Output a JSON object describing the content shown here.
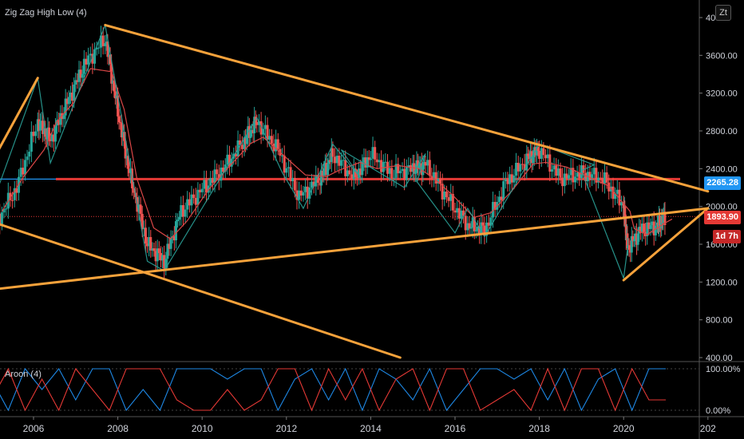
{
  "indicators": {
    "main_title": "Zig Zag High Low (4)",
    "osc_title": "Aroon (4)"
  },
  "scale_button": "Zt",
  "price_tags": {
    "blue": "2265.28",
    "last": "1893.90",
    "countdown": "1d 7h"
  },
  "colors": {
    "background": "#000000",
    "up": "#26a69a",
    "down": "#ef5350",
    "trendline": "#f7a23b",
    "resistance": "#e53935",
    "ma": "#d94646",
    "blue_tag": "#2196f3",
    "aroon_up": "#1e88e5",
    "aroon_down": "#e53935"
  },
  "chart_data": [
    {
      "type": "candlestick",
      "title": "Zig Zag High Low (4)",
      "x_tick_labels": [
        "2006",
        "2008",
        "2010",
        "2012",
        "2014",
        "2016",
        "2018",
        "2020",
        "202"
      ],
      "y_tick_labels": [
        "400.00",
        "800.00",
        "1200.00",
        "1600.00",
        "2000.00",
        "2400.00",
        "2800.00",
        "3200.00",
        "3600.00",
        "40"
      ],
      "ylim": [
        400,
        4000
      ],
      "xlim": [
        2005.0,
        2022.0
      ],
      "zigzag": {
        "x": [
          2005.0,
          2006.1,
          2006.4,
          2007.7,
          2008.7,
          2009.1,
          2011.3,
          2011.9,
          2012.4,
          2013.1,
          2013.8,
          2013.3,
          2014.8,
          2015.3,
          2015.1,
          2016.0,
          2016.3,
          2016.7,
          2018.0,
          2019.3,
          2019.0,
          2020.0,
          2020.1
        ],
        "y": [
          2000,
          3360,
          2460,
          3920,
          1420,
          1320,
          2940,
          2360,
          1980,
          2660,
          2280,
          2600,
          2200,
          2560,
          2260,
          1720,
          1980,
          1680,
          2660,
          2440,
          2380,
          1240,
          1580
        ]
      },
      "trendlines": [
        {
          "name": "upper-descending",
          "x": [
            2007.7,
            2022.0
          ],
          "y": [
            3920,
            2160
          ]
        },
        {
          "name": "lower-rising",
          "x": [
            2005.0,
            2022.0
          ],
          "y": [
            1120,
            1980
          ]
        },
        {
          "name": "lower-descending",
          "x": [
            2005.0,
            2014.7
          ],
          "y": [
            1840,
            400
          ]
        },
        {
          "name": "short-rising",
          "x": [
            2020.0,
            2022.0
          ],
          "y": [
            1220,
            1980
          ]
        },
        {
          "name": "early-rising",
          "x": [
            2005.0,
            2006.1
          ],
          "y": [
            2460,
            3360
          ]
        }
      ],
      "resistance_level": 2290,
      "last_price": 1893.9,
      "series_close": {
        "x": [
          2005.1,
          2005.6,
          2006.1,
          2006.4,
          2006.8,
          2007.2,
          2007.7,
          2008.0,
          2008.3,
          2008.7,
          2009.1,
          2009.5,
          2010.0,
          2010.5,
          2011.0,
          2011.3,
          2011.8,
          2012.3,
          2012.8,
          2013.1,
          2013.6,
          2014.0,
          2014.5,
          2015.0,
          2015.3,
          2015.8,
          2016.3,
          2016.7,
          2017.2,
          2017.7,
          2018.0,
          2018.5,
          2019.0,
          2019.5,
          2020.0,
          2020.1,
          2020.4,
          2020.8,
          2021.0
        ],
        "y": [
          1820,
          2200,
          2900,
          2700,
          3100,
          3500,
          3780,
          3000,
          2300,
          1600,
          1420,
          1950,
          2180,
          2400,
          2700,
          2900,
          2600,
          2100,
          2300,
          2550,
          2300,
          2550,
          2350,
          2400,
          2450,
          2100,
          1800,
          1750,
          2250,
          2500,
          2600,
          2300,
          2350,
          2300,
          2000,
          1550,
          1750,
          1800,
          1900
        ]
      }
    },
    {
      "type": "line",
      "title": "Aroon (4)",
      "y_tick_labels": [
        "0.00%",
        "100.00%"
      ],
      "ylim": [
        0,
        100
      ],
      "series": [
        {
          "name": "Aroon Up",
          "x": [
            2005.0,
            2005.4,
            2005.8,
            2006.2,
            2006.6,
            2007.0,
            2007.4,
            2007.8,
            2008.2,
            2008.6,
            2009.0,
            2009.4,
            2009.8,
            2010.2,
            2010.6,
            2011.0,
            2011.4,
            2011.8,
            2012.2,
            2012.6,
            2013.0,
            2013.4,
            2013.8,
            2014.2,
            2014.6,
            2015.0,
            2015.4,
            2015.8,
            2016.2,
            2016.6,
            2017.0,
            2017.4,
            2017.8,
            2018.2,
            2018.6,
            2019.0,
            2019.4,
            2019.8,
            2020.2,
            2020.6,
            2021.0
          ],
          "values": [
            75,
            0,
            100,
            50,
            100,
            25,
            100,
            100,
            0,
            50,
            0,
            100,
            100,
            100,
            75,
            100,
            100,
            0,
            75,
            100,
            25,
            100,
            0,
            100,
            75,
            25,
            100,
            0,
            50,
            100,
            100,
            75,
            100,
            25,
            100,
            0,
            75,
            100,
            0,
            100,
            100
          ]
        },
        {
          "name": "Aroon Down",
          "x": [
            2005.0,
            2005.4,
            2005.8,
            2006.2,
            2006.6,
            2007.0,
            2007.4,
            2007.8,
            2008.2,
            2008.6,
            2009.0,
            2009.4,
            2009.8,
            2010.2,
            2010.6,
            2011.0,
            2011.4,
            2011.8,
            2012.2,
            2012.6,
            2013.0,
            2013.4,
            2013.8,
            2014.2,
            2014.6,
            2015.0,
            2015.4,
            2015.8,
            2016.2,
            2016.6,
            2017.0,
            2017.4,
            2017.8,
            2018.2,
            2018.6,
            2019.0,
            2019.4,
            2019.8,
            2020.2,
            2020.6,
            2021.0
          ],
          "values": [
            25,
            100,
            0,
            75,
            0,
            100,
            50,
            0,
            100,
            100,
            100,
            25,
            0,
            0,
            50,
            0,
            25,
            100,
            100,
            0,
            100,
            25,
            100,
            0,
            75,
            100,
            0,
            100,
            100,
            0,
            25,
            50,
            0,
            100,
            0,
            100,
            100,
            0,
            100,
            25,
            25
          ]
        }
      ]
    }
  ]
}
